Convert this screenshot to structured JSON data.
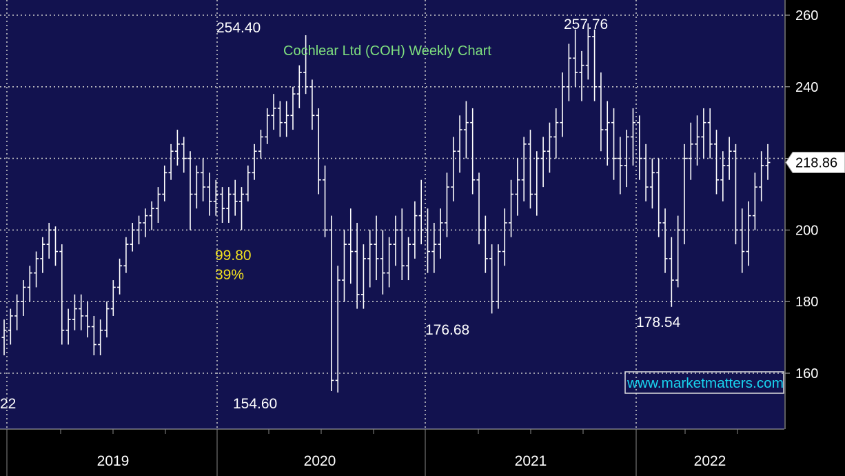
{
  "chart_data": {
    "type": "ohlc",
    "title": "Cochlear Ltd (COH) Weekly Chart",
    "ylim": [
      145,
      262
    ],
    "y_ticks": [
      160,
      180,
      200,
      220,
      240,
      260
    ],
    "x_labels": [
      "2019",
      "2020",
      "2021",
      "2022"
    ],
    "last_price_label": "218.86",
    "last_price": 218.86,
    "annotations": [
      {
        "id": "high-2020",
        "text": "254.40",
        "value": 254.4
      },
      {
        "id": "low-2020",
        "text": "154.60",
        "value": 154.6
      },
      {
        "id": "drop-points",
        "text": "99.80"
      },
      {
        "id": "drop-pct",
        "text": "39%"
      },
      {
        "id": "low-2020b",
        "text": "176.68",
        "value": 176.68
      },
      {
        "id": "high-2021",
        "text": "257.76",
        "value": 257.76
      },
      {
        "id": "low-2022",
        "text": "178.54",
        "value": 178.54
      },
      {
        "id": "left-cut",
        "text": "22"
      }
    ],
    "watermark": "www.marketmatters.com",
    "colors": {
      "background": "#12124f",
      "bars": "#ffffff",
      "grid": "#c8c8c8",
      "title": "#7fe07f",
      "highlight": "#f0e020",
      "watermark": "#19d3ee",
      "axis_bg": "#000000"
    },
    "series": [
      {
        "values": [
          [
            170,
            175,
            165,
            172
          ],
          [
            172,
            178,
            168,
            176
          ],
          [
            176,
            182,
            172,
            180
          ],
          [
            180,
            186,
            176,
            184
          ],
          [
            184,
            190,
            180,
            188
          ],
          [
            188,
            194,
            184,
            192
          ],
          [
            192,
            198,
            188,
            196
          ],
          [
            196,
            202,
            192,
            200
          ],
          [
            200,
            201,
            190,
            194
          ],
          [
            194,
            196,
            168,
            172
          ],
          [
            172,
            178,
            168,
            175
          ],
          [
            175,
            182,
            172,
            178
          ],
          [
            178,
            182,
            172,
            176
          ],
          [
            176,
            180,
            170,
            173
          ],
          [
            173,
            176,
            165,
            168
          ],
          [
            168,
            175,
            165,
            172
          ],
          [
            172,
            180,
            170,
            178
          ],
          [
            178,
            186,
            176,
            184
          ],
          [
            184,
            192,
            182,
            190
          ],
          [
            190,
            198,
            188,
            196
          ],
          [
            196,
            202,
            194,
            200
          ],
          [
            200,
            204,
            196,
            202
          ],
          [
            202,
            206,
            198,
            204
          ],
          [
            204,
            208,
            200,
            206
          ],
          [
            206,
            212,
            202,
            210
          ],
          [
            210,
            218,
            208,
            216
          ],
          [
            216,
            224,
            214,
            222
          ],
          [
            222,
            228,
            218,
            224
          ],
          [
            224,
            226,
            216,
            220
          ],
          [
            220,
            222,
            200,
            210
          ],
          [
            210,
            218,
            206,
            216
          ],
          [
            216,
            220,
            208,
            212
          ],
          [
            212,
            216,
            204,
            208
          ],
          [
            208,
            214,
            204,
            210
          ],
          [
            210,
            212,
            202,
            206
          ],
          [
            206,
            212,
            202,
            210
          ],
          [
            210,
            214,
            204,
            208
          ],
          [
            208,
            212,
            200,
            210
          ],
          [
            210,
            218,
            208,
            216
          ],
          [
            216,
            224,
            214,
            222
          ],
          [
            222,
            228,
            220,
            226
          ],
          [
            226,
            234,
            224,
            232
          ],
          [
            232,
            238,
            228,
            234
          ],
          [
            234,
            236,
            226,
            230
          ],
          [
            230,
            236,
            226,
            232
          ],
          [
            232,
            240,
            228,
            238
          ],
          [
            238,
            246,
            234,
            244
          ],
          [
            244,
            254.4,
            238,
            240
          ],
          [
            240,
            242,
            228,
            232
          ],
          [
            232,
            234,
            210,
            214
          ],
          [
            214,
            218,
            198,
            200
          ],
          [
            200,
            204,
            155,
            158
          ],
          [
            158,
            190,
            154.6,
            186
          ],
          [
            186,
            200,
            180,
            196
          ],
          [
            196,
            206,
            185,
            194
          ],
          [
            194,
            202,
            178,
            182
          ],
          [
            182,
            196,
            178,
            192
          ],
          [
            192,
            200,
            184,
            196
          ],
          [
            196,
            204,
            186,
            192
          ],
          [
            192,
            200,
            182,
            188
          ],
          [
            188,
            198,
            184,
            196
          ],
          [
            196,
            204,
            190,
            200
          ],
          [
            200,
            206,
            186,
            190
          ],
          [
            190,
            198,
            186,
            196
          ],
          [
            196,
            208,
            192,
            204
          ],
          [
            204,
            214,
            196,
            200
          ],
          [
            200,
            206,
            188,
            194
          ],
          [
            194,
            202,
            188,
            196
          ],
          [
            196,
            206,
            192,
            202
          ],
          [
            202,
            216,
            198,
            212
          ],
          [
            212,
            226,
            208,
            222
          ],
          [
            222,
            232,
            216,
            228
          ],
          [
            228,
            236,
            220,
            230
          ],
          [
            230,
            234,
            210,
            214
          ],
          [
            214,
            216,
            196,
            200
          ],
          [
            200,
            204,
            188,
            192
          ],
          [
            192,
            196,
            176.68,
            180
          ],
          [
            180,
            196,
            178,
            194
          ],
          [
            194,
            206,
            190,
            202
          ],
          [
            202,
            214,
            198,
            210
          ],
          [
            210,
            220,
            204,
            214
          ],
          [
            214,
            226,
            208,
            224
          ],
          [
            224,
            228,
            206,
            210
          ],
          [
            210,
            222,
            204,
            220
          ],
          [
            220,
            226,
            212,
            222
          ],
          [
            222,
            230,
            216,
            226
          ],
          [
            226,
            234,
            220,
            230
          ],
          [
            230,
            244,
            226,
            240
          ],
          [
            240,
            252,
            236,
            248
          ],
          [
            248,
            256,
            240,
            244
          ],
          [
            244,
            250,
            236,
            246
          ],
          [
            246,
            257.76,
            242,
            254
          ],
          [
            254,
            256,
            236,
            240
          ],
          [
            240,
            244,
            222,
            228
          ],
          [
            228,
            236,
            218,
            230
          ],
          [
            230,
            234,
            214,
            220
          ],
          [
            220,
            226,
            210,
            218
          ],
          [
            218,
            228,
            212,
            226
          ],
          [
            226,
            234,
            218,
            230
          ],
          [
            230,
            232,
            214,
            220
          ],
          [
            220,
            224,
            208,
            212
          ],
          [
            212,
            220,
            206,
            216
          ],
          [
            216,
            220,
            198,
            202
          ],
          [
            202,
            206,
            188,
            192
          ],
          [
            192,
            198,
            178.54,
            186
          ],
          [
            186,
            204,
            184,
            200
          ],
          [
            200,
            224,
            196,
            220
          ],
          [
            220,
            230,
            214,
            224
          ],
          [
            224,
            232,
            218,
            226
          ],
          [
            226,
            234,
            220,
            230
          ],
          [
            230,
            234,
            220,
            224
          ],
          [
            224,
            228,
            210,
            214
          ],
          [
            214,
            222,
            208,
            218
          ],
          [
            218,
            226,
            214,
            222
          ],
          [
            222,
            224,
            196,
            200
          ],
          [
            200,
            206,
            188,
            194
          ],
          [
            194,
            208,
            190,
            204
          ],
          [
            204,
            216,
            200,
            212
          ],
          [
            212,
            222,
            208,
            218
          ],
          [
            218,
            224,
            214,
            218.86
          ]
        ]
      }
    ]
  }
}
